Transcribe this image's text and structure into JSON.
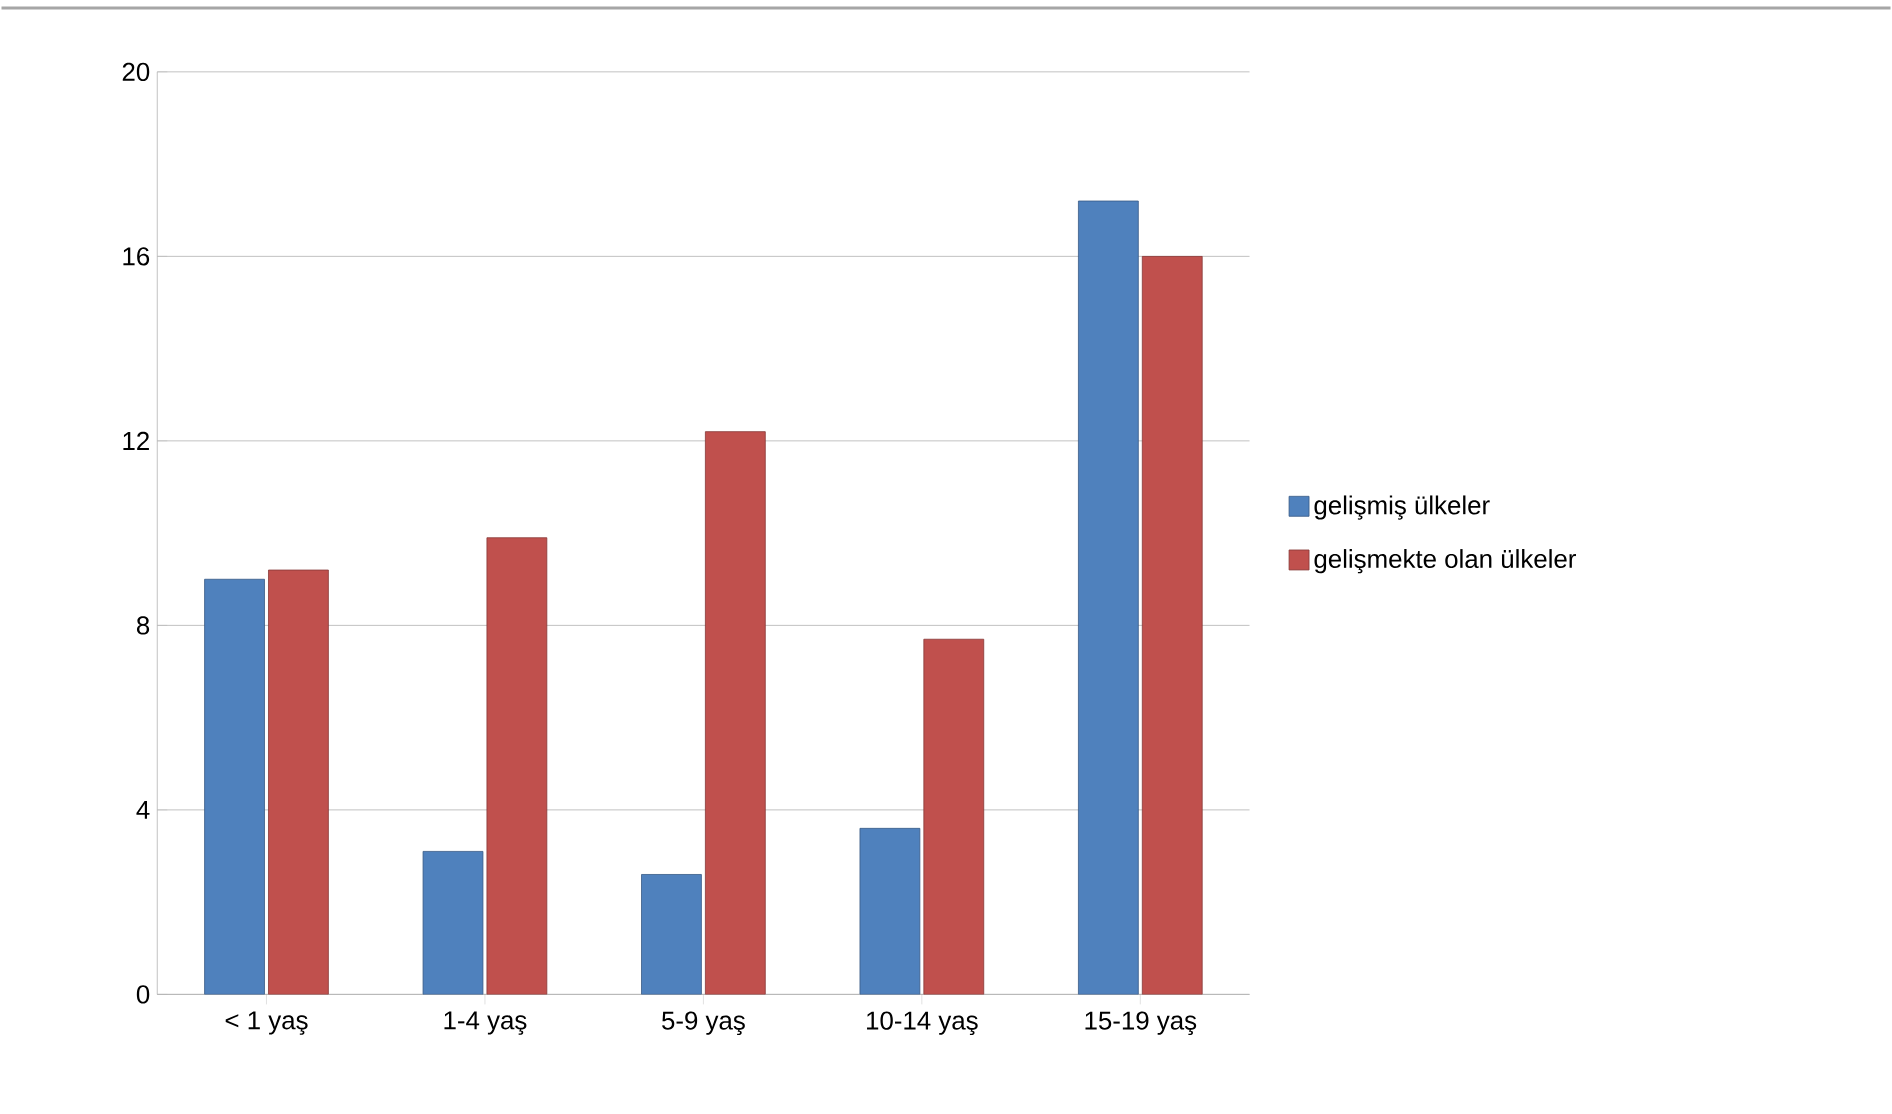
{
  "chart_data": {
    "type": "bar",
    "categories": [
      "< 1 yaş",
      "1-4 yaş",
      "5-9 yaş",
      "10-14 yaş",
      "15-19 yaş"
    ],
    "series": [
      {
        "name": "gelişmiş ülkeler",
        "color": "#4f81bd",
        "values": [
          9.0,
          3.1,
          2.6,
          3.6,
          17.2
        ]
      },
      {
        "name": "gelişmekte olan ülkeler",
        "color": "#c0504d",
        "values": [
          9.2,
          9.9,
          12.2,
          7.7,
          16.0
        ]
      }
    ],
    "ylim": [
      0,
      20
    ],
    "yticks": [
      0,
      4,
      8,
      12,
      16,
      20
    ],
    "grid": "y",
    "legend": "right"
  }
}
